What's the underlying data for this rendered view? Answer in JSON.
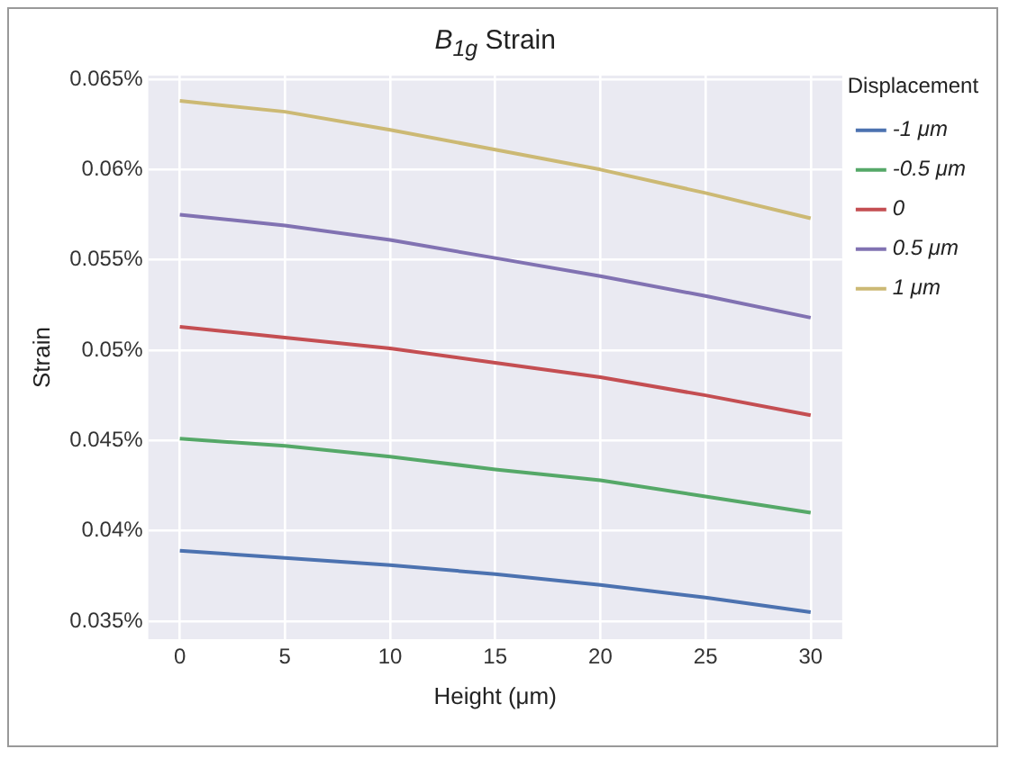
{
  "chart_data": {
    "type": "line",
    "title": "B$_{1g}$ Strain",
    "xlabel": "Height (μm)",
    "ylabel": "Strain",
    "legend_title": "Displacement",
    "legend": "top right",
    "grid": true,
    "marker": "none",
    "line_style": "solid",
    "x": [
      0,
      5,
      10,
      15,
      20,
      25,
      30
    ],
    "xlim": [
      -1.5,
      31.5
    ],
    "xticks": [
      0,
      5,
      10,
      15,
      20,
      25,
      30
    ],
    "ylim": [
      0.034,
      0.0652
    ],
    "yticks": [
      {
        "value": 0.035,
        "label": "0.035%"
      },
      {
        "value": 0.04,
        "label": "0.04%"
      },
      {
        "value": 0.045,
        "label": "0.045%"
      },
      {
        "value": 0.05,
        "label": "0.05%"
      },
      {
        "value": 0.055,
        "label": "0.055%"
      },
      {
        "value": 0.06,
        "label": "0.06%"
      },
      {
        "value": 0.065,
        "label": "0.065%"
      }
    ],
    "series": [
      {
        "name": "-1 μm",
        "color": "#4c72b0",
        "values": [
          0.0389,
          0.0385,
          0.0381,
          0.0376,
          0.037,
          0.0363,
          0.0355
        ]
      },
      {
        "name": "-0.5 μm",
        "color": "#55a868",
        "values": [
          0.0451,
          0.0447,
          0.0441,
          0.0434,
          0.0428,
          0.0419,
          0.041
        ]
      },
      {
        "name": "0",
        "color": "#c44e52",
        "values": [
          0.0513,
          0.0507,
          0.0501,
          0.0493,
          0.0485,
          0.0475,
          0.0464
        ]
      },
      {
        "name": "0.5 μm",
        "color": "#8172b2",
        "values": [
          0.0575,
          0.0569,
          0.0561,
          0.0551,
          0.0541,
          0.053,
          0.0518
        ]
      },
      {
        "name": "1 μm",
        "color": "#ccb974",
        "values": [
          0.0638,
          0.0632,
          0.0622,
          0.0611,
          0.06,
          0.0587,
          0.0573
        ]
      }
    ]
  }
}
